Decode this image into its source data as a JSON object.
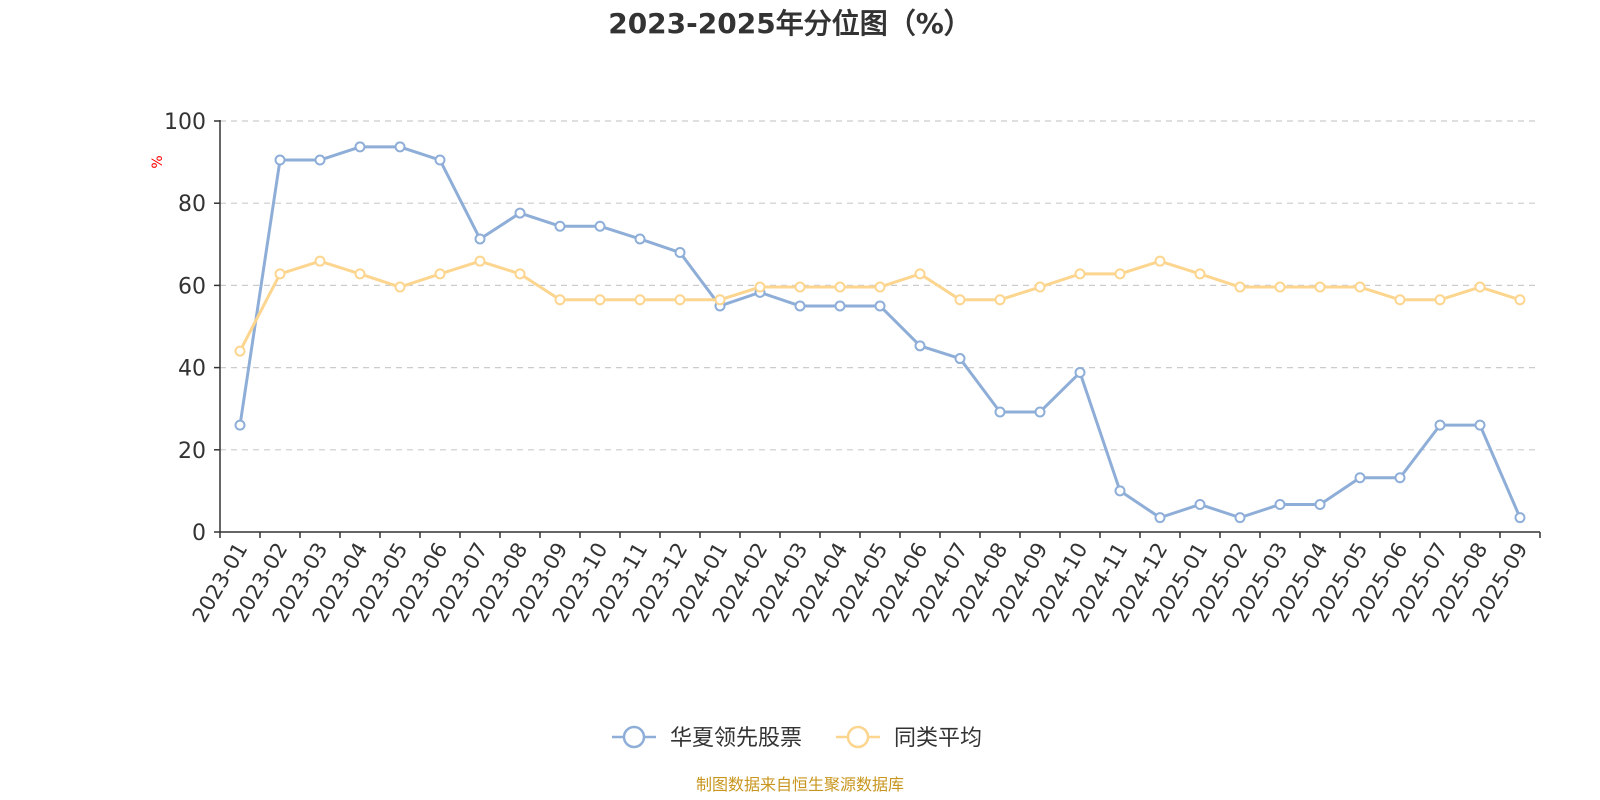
{
  "chart_data": {
    "type": "line",
    "title": "2023-2025年分位图（%）",
    "ylabel": "%",
    "xlabel": "",
    "ylim": [
      0,
      100
    ],
    "yticks": [
      0,
      20,
      40,
      60,
      80,
      100
    ],
    "grid": true,
    "legend_position": "bottom-center",
    "categories": [
      "2023-01",
      "2023-02",
      "2023-03",
      "2023-04",
      "2023-05",
      "2023-06",
      "2023-07",
      "2023-08",
      "2023-09",
      "2023-10",
      "2023-11",
      "2023-12",
      "2024-01",
      "2024-02",
      "2024-03",
      "2024-04",
      "2024-05",
      "2024-06",
      "2024-07",
      "2024-08",
      "2024-09",
      "2024-10",
      "2024-11",
      "2024-12",
      "2025-01",
      "2025-02",
      "2025-03",
      "2025-04",
      "2025-05",
      "2025-06",
      "2025-07",
      "2025-08",
      "2025-09"
    ],
    "series": [
      {
        "name": "华夏领先股票",
        "color": "#8eaed8",
        "values": [
          26,
          90.5,
          90.5,
          93.7,
          93.7,
          90.5,
          71.3,
          77.6,
          74.4,
          74.4,
          71.3,
          68,
          55,
          58.3,
          55,
          55,
          55,
          45.3,
          42.2,
          29.2,
          29.2,
          38.8,
          10,
          3.5,
          6.7,
          3.5,
          6.7,
          6.7,
          13.2,
          13.2,
          26,
          26,
          3.5
        ]
      },
      {
        "name": "同类平均",
        "color": "#fcd58f",
        "values": [
          44,
          62.8,
          65.9,
          62.8,
          59.6,
          62.8,
          65.9,
          62.8,
          56.5,
          56.5,
          56.5,
          56.5,
          56.5,
          59.6,
          59.6,
          59.6,
          59.6,
          62.8,
          56.5,
          56.5,
          59.6,
          62.8,
          62.8,
          65.9,
          62.8,
          59.6,
          59.6,
          59.6,
          59.6,
          56.5,
          56.5,
          59.6,
          56.5
        ]
      }
    ]
  },
  "source": "制图数据来自恒生聚源数据库"
}
